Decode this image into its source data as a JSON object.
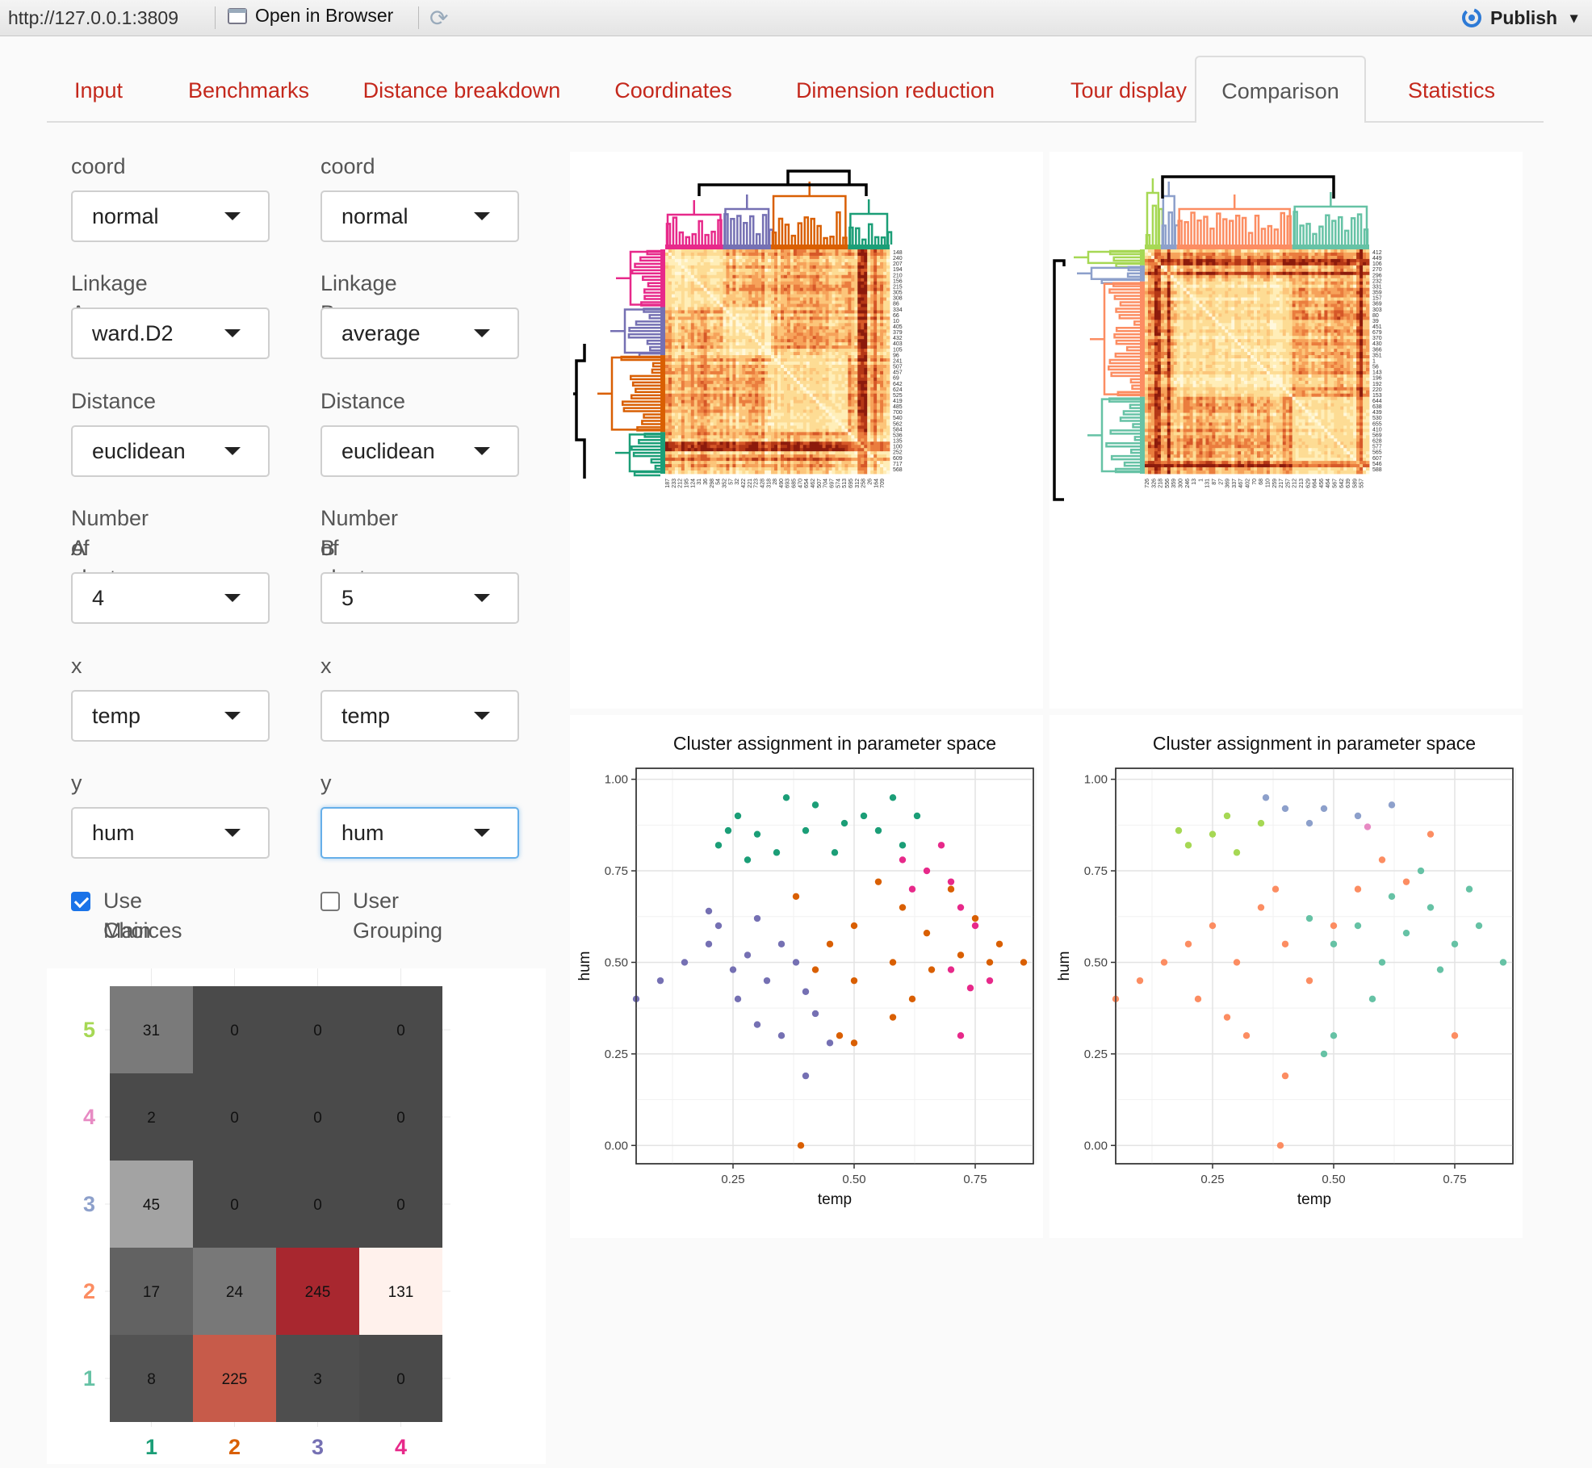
{
  "browser": {
    "url": "http://127.0.0.1:3809",
    "open_in_browser": "Open in Browser",
    "publish": "Publish"
  },
  "tabs": [
    {
      "label": "Input",
      "active": false
    },
    {
      "label": "Benchmarks",
      "active": false
    },
    {
      "label": "Distance breakdown",
      "active": false
    },
    {
      "label": "Coordinates",
      "active": false
    },
    {
      "label": "Dimension reduction",
      "active": false
    },
    {
      "label": "Tour display",
      "active": false
    },
    {
      "label": "Comparison",
      "active": true
    },
    {
      "label": "Statistics",
      "active": false
    }
  ],
  "controls": {
    "a": {
      "coord_label": "coord",
      "coord_value": "normal",
      "linkage_label": "Linkage A",
      "linkage_value": "ward.D2",
      "distance_label": "Distance measure A",
      "distance_value": "euclidean",
      "clusters_label_1": "Number of clusters",
      "clusters_label_2": "A",
      "clusters_value": "4",
      "x_label": "x",
      "x_value": "temp",
      "y_label": "y",
      "y_value": "hum",
      "checkbox_label_1": "Use Main",
      "checkbox_label_2": "Choices",
      "checkbox_checked": true
    },
    "b": {
      "coord_label": "coord",
      "coord_value": "normal",
      "linkage_label": "Linkage B",
      "linkage_value": "average",
      "distance_label": "Distance measure B",
      "distance_value": "euclidean",
      "clusters_label_1": "Number of clusters",
      "clusters_label_2": "B",
      "clusters_value": "5",
      "x_label": "x",
      "x_value": "temp",
      "y_label": "y",
      "y_value": "hum",
      "checkbox_label": "User Grouping",
      "checkbox_checked": false
    }
  },
  "heatmap_row_labels_a": [
    "148",
    "240",
    "207",
    "194",
    "210",
    "156",
    "215",
    "305",
    "308",
    "86",
    "334",
    "66",
    "10",
    "405",
    "379",
    "432",
    "403",
    "105",
    "96",
    "241",
    "507",
    "457",
    "69",
    "642",
    "624",
    "525",
    "419",
    "485",
    "700",
    "540",
    "562",
    "584",
    "536",
    "135",
    "100",
    "252",
    "609",
    "717",
    "568"
  ],
  "heatmap_col_labels_a": [
    "187",
    "233",
    "212",
    "195",
    "124",
    "31",
    "36",
    "298",
    "54",
    "352",
    "57",
    "32",
    "422",
    "221",
    "723",
    "428",
    "318",
    "28",
    "490",
    "693",
    "685",
    "470",
    "654",
    "462",
    "507",
    "704",
    "697",
    "574",
    "513",
    "695",
    "312",
    "258",
    "26",
    "164",
    "709"
  ],
  "heatmap_row_labels_b": [
    "412",
    "449",
    "106",
    "270",
    "296",
    "232",
    "331",
    "359",
    "157",
    "369",
    "303",
    "80",
    "39",
    "451",
    "679",
    "370",
    "430",
    "366",
    "351",
    "1",
    "56",
    "143",
    "196",
    "192",
    "220",
    "153",
    "644",
    "638",
    "439",
    "530",
    "655",
    "410",
    "569",
    "628",
    "577",
    "565",
    "607",
    "546",
    "588"
  ],
  "heatmap_col_labels_b": [
    "726",
    "326",
    "218",
    "556",
    "359",
    "300",
    "246",
    "13",
    "1",
    "131",
    "87",
    "27",
    "369",
    "337",
    "467",
    "402",
    "70",
    "68",
    "110",
    "259",
    "217",
    "257",
    "212",
    "213",
    "629",
    "664",
    "456",
    "464",
    "567",
    "642",
    "639",
    "589",
    "557"
  ],
  "chart_data": [
    {
      "type": "scatter",
      "title": "Cluster assignment in parameter space",
      "xlabel": "temp",
      "ylabel": "hum",
      "x_ticks": [
        "0.25",
        "0.50",
        "0.75"
      ],
      "y_ticks": [
        "0.00",
        "0.25",
        "0.50",
        "0.75",
        "1.00"
      ],
      "xlim": [
        0.05,
        0.87
      ],
      "ylim": [
        -0.05,
        1.03
      ],
      "grid": true,
      "series": [
        {
          "color": "#1b9e77",
          "points": [
            [
              0.22,
              0.82
            ],
            [
              0.26,
              0.9
            ],
            [
              0.3,
              0.85
            ],
            [
              0.36,
              0.95
            ],
            [
              0.42,
              0.93
            ],
            [
              0.48,
              0.88
            ],
            [
              0.52,
              0.9
            ],
            [
              0.58,
              0.95
            ],
            [
              0.63,
              0.9
            ],
            [
              0.34,
              0.8
            ],
            [
              0.4,
              0.86
            ],
            [
              0.46,
              0.8
            ],
            [
              0.55,
              0.86
            ],
            [
              0.6,
              0.82
            ],
            [
              0.28,
              0.78
            ],
            [
              0.24,
              0.86
            ]
          ]
        },
        {
          "color": "#d95f02",
          "points": [
            [
              0.38,
              0.68
            ],
            [
              0.45,
              0.55
            ],
            [
              0.5,
              0.6
            ],
            [
              0.55,
              0.72
            ],
            [
              0.6,
              0.65
            ],
            [
              0.65,
              0.58
            ],
            [
              0.7,
              0.7
            ],
            [
              0.75,
              0.62
            ],
            [
              0.8,
              0.55
            ],
            [
              0.42,
              0.48
            ],
            [
              0.5,
              0.45
            ],
            [
              0.58,
              0.5
            ],
            [
              0.66,
              0.48
            ],
            [
              0.72,
              0.52
            ],
            [
              0.78,
              0.5
            ],
            [
              0.85,
              0.5
            ],
            [
              0.47,
              0.3
            ],
            [
              0.58,
              0.35
            ],
            [
              0.39,
              0.0
            ],
            [
              0.5,
              0.28
            ],
            [
              0.62,
              0.4
            ]
          ]
        },
        {
          "color": "#7570b3",
          "points": [
            [
              0.1,
              0.45
            ],
            [
              0.15,
              0.5
            ],
            [
              0.2,
              0.55
            ],
            [
              0.22,
              0.6
            ],
            [
              0.25,
              0.48
            ],
            [
              0.28,
              0.52
            ],
            [
              0.3,
              0.62
            ],
            [
              0.32,
              0.45
            ],
            [
              0.35,
              0.55
            ],
            [
              0.38,
              0.5
            ],
            [
              0.4,
              0.42
            ],
            [
              0.26,
              0.4
            ],
            [
              0.3,
              0.33
            ],
            [
              0.35,
              0.3
            ],
            [
              0.42,
              0.36
            ],
            [
              0.45,
              0.28
            ],
            [
              0.4,
              0.19
            ],
            [
              0.2,
              0.64
            ],
            [
              0.05,
              0.4
            ]
          ]
        },
        {
          "color": "#e7298a",
          "points": [
            [
              0.6,
              0.78
            ],
            [
              0.65,
              0.75
            ],
            [
              0.7,
              0.72
            ],
            [
              0.72,
              0.65
            ],
            [
              0.75,
              0.6
            ],
            [
              0.68,
              0.82
            ],
            [
              0.62,
              0.7
            ],
            [
              0.7,
              0.48
            ],
            [
              0.74,
              0.43
            ],
            [
              0.72,
              0.3
            ],
            [
              0.78,
              0.45
            ]
          ]
        }
      ]
    },
    {
      "type": "scatter",
      "title": "Cluster assignment in parameter space",
      "xlabel": "temp",
      "ylabel": "hum",
      "x_ticks": [
        "0.25",
        "0.50",
        "0.75"
      ],
      "y_ticks": [
        "0.00",
        "0.25",
        "0.50",
        "0.75",
        "1.00"
      ],
      "xlim": [
        0.05,
        0.87
      ],
      "ylim": [
        -0.05,
        1.03
      ],
      "grid": true,
      "series": [
        {
          "color": "#a6d854",
          "points": [
            [
              0.2,
              0.82
            ],
            [
              0.25,
              0.85
            ],
            [
              0.3,
              0.8
            ],
            [
              0.35,
              0.88
            ],
            [
              0.28,
              0.9
            ],
            [
              0.18,
              0.86
            ]
          ]
        },
        {
          "color": "#8da0cb",
          "points": [
            [
              0.36,
              0.95
            ],
            [
              0.4,
              0.92
            ],
            [
              0.48,
              0.92
            ],
            [
              0.55,
              0.9
            ],
            [
              0.62,
              0.93
            ],
            [
              0.45,
              0.88
            ]
          ]
        },
        {
          "color": "#fc8d62",
          "points": [
            [
              0.1,
              0.45
            ],
            [
              0.15,
              0.5
            ],
            [
              0.2,
              0.55
            ],
            [
              0.25,
              0.6
            ],
            [
              0.3,
              0.5
            ],
            [
              0.35,
              0.65
            ],
            [
              0.4,
              0.55
            ],
            [
              0.45,
              0.45
            ],
            [
              0.5,
              0.6
            ],
            [
              0.55,
              0.7
            ],
            [
              0.6,
              0.78
            ],
            [
              0.65,
              0.72
            ],
            [
              0.7,
              0.85
            ],
            [
              0.28,
              0.35
            ],
            [
              0.32,
              0.3
            ],
            [
              0.39,
              0.0
            ],
            [
              0.4,
              0.19
            ],
            [
              0.22,
              0.4
            ],
            [
              0.05,
              0.4
            ],
            [
              0.38,
              0.7
            ],
            [
              0.75,
              0.3
            ]
          ]
        },
        {
          "color": "#66c2a5",
          "points": [
            [
              0.45,
              0.62
            ],
            [
              0.5,
              0.55
            ],
            [
              0.55,
              0.6
            ],
            [
              0.6,
              0.5
            ],
            [
              0.65,
              0.58
            ],
            [
              0.7,
              0.65
            ],
            [
              0.75,
              0.55
            ],
            [
              0.8,
              0.6
            ],
            [
              0.85,
              0.5
            ],
            [
              0.62,
              0.68
            ],
            [
              0.68,
              0.75
            ],
            [
              0.72,
              0.48
            ],
            [
              0.5,
              0.3
            ],
            [
              0.48,
              0.25
            ],
            [
              0.58,
              0.4
            ],
            [
              0.78,
              0.7
            ]
          ]
        },
        {
          "color": "#e78ac3",
          "points": [
            [
              0.57,
              0.87
            ]
          ]
        }
      ]
    },
    {
      "type": "heatmap",
      "x_categories": [
        "1",
        "2",
        "3",
        "4"
      ],
      "y_categories": [
        "5",
        "4",
        "3",
        "2",
        "1"
      ],
      "values": [
        [
          31,
          0,
          0,
          0
        ],
        [
          2,
          0,
          0,
          0
        ],
        [
          45,
          0,
          0,
          0
        ],
        [
          17,
          24,
          245,
          131
        ],
        [
          8,
          225,
          3,
          0
        ]
      ],
      "cell_colors": [
        [
          "#7a7a7a",
          "#4a4a4a",
          "#4a4a4a",
          "#4a4a4a"
        ],
        [
          "#4a4a4a",
          "#4a4a4a",
          "#4a4a4a",
          "#4a4a4a"
        ],
        [
          "#a3a3a3",
          "#4a4a4a",
          "#4a4a4a",
          "#4a4a4a"
        ],
        [
          "#626262",
          "#787878",
          "#a8272f",
          "#fff1ec"
        ],
        [
          "#535353",
          "#c75b4a",
          "#4e4e4e",
          "#4a4a4a"
        ]
      ],
      "x_colors": [
        "#1b9e77",
        "#d95f02",
        "#7570b3",
        "#e7298a"
      ],
      "y_colors": [
        "#a6d854",
        "#e78ac3",
        "#8da0cb",
        "#fc8d62",
        "#66c2a5"
      ]
    }
  ]
}
